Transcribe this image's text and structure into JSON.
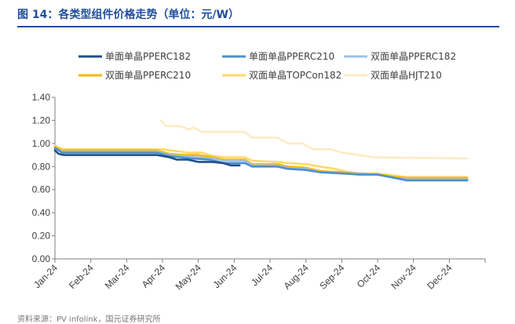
{
  "figure_title": "图 14：各类型组件价格走势（单位：元/W）",
  "source": "资料来源：PV infolink，国元证券研究所",
  "colors": {
    "title": "#1f4e9c",
    "axis": "#7f7f7f",
    "text": "#404040"
  },
  "chart_data": {
    "type": "line",
    "title": "各类型组件价格走势",
    "xlabel": "",
    "ylabel": "元/W",
    "ylim": [
      0,
      1.4
    ],
    "yticks": [
      "0.00",
      "0.20",
      "0.40",
      "0.60",
      "0.80",
      "1.00",
      "1.20",
      "1.40"
    ],
    "categories": [
      "Jan-24",
      "Feb-24",
      "Mar-24",
      "Apr-24",
      "May-24",
      "Jun-24",
      "Jul-24",
      "Aug-24",
      "Sep-24",
      "Oct-24",
      "Nov-24",
      "Dec-24"
    ],
    "grid": false,
    "legend_position": "top",
    "series": [
      {
        "name": "单面单晶PPERC182",
        "color": "#1f4e8c",
        "points": [
          [
            0,
            0.94
          ],
          [
            0.1,
            0.91
          ],
          [
            0.25,
            0.9
          ],
          [
            1,
            0.9
          ],
          [
            2,
            0.9
          ],
          [
            2.85,
            0.9
          ],
          [
            3.2,
            0.88
          ],
          [
            3.4,
            0.86
          ],
          [
            3.7,
            0.86
          ],
          [
            4,
            0.84
          ],
          [
            4.4,
            0.84
          ],
          [
            4.7,
            0.83
          ],
          [
            4.9,
            0.81
          ],
          [
            5.15,
            0.81
          ]
        ]
      },
      {
        "name": "单面单晶PPERC210",
        "color": "#4f8fc9",
        "points": [
          [
            0,
            0.96
          ],
          [
            0.2,
            0.92
          ],
          [
            1,
            0.92
          ],
          [
            2,
            0.92
          ],
          [
            2.85,
            0.92
          ],
          [
            3.2,
            0.89
          ],
          [
            3.5,
            0.88
          ],
          [
            3.8,
            0.87
          ],
          [
            4.3,
            0.86
          ],
          [
            4.7,
            0.83
          ],
          [
            5.3,
            0.83
          ],
          [
            5.5,
            0.8
          ],
          [
            6.2,
            0.8
          ],
          [
            6.5,
            0.78
          ],
          [
            7,
            0.77
          ],
          [
            7.4,
            0.75
          ],
          [
            8,
            0.74
          ],
          [
            8.5,
            0.73
          ],
          [
            9,
            0.73
          ],
          [
            9.5,
            0.7
          ],
          [
            9.8,
            0.68
          ],
          [
            11.5,
            0.68
          ]
        ]
      },
      {
        "name": "双面单晶PPERC182",
        "color": "#9dc3e6",
        "points": [
          [
            0,
            0.96
          ],
          [
            0.2,
            0.93
          ],
          [
            1,
            0.93
          ],
          [
            2,
            0.93
          ],
          [
            2.85,
            0.93
          ],
          [
            3.2,
            0.9
          ],
          [
            3.6,
            0.89
          ],
          [
            4,
            0.88
          ],
          [
            4.4,
            0.87
          ],
          [
            4.7,
            0.85
          ],
          [
            5.3,
            0.85
          ],
          [
            5.5,
            0.81
          ],
          [
            6.2,
            0.81
          ],
          [
            6.5,
            0.79
          ],
          [
            7,
            0.78
          ],
          [
            7.4,
            0.75
          ],
          [
            8,
            0.74
          ],
          [
            8.5,
            0.74
          ],
          [
            9,
            0.73
          ],
          [
            9.5,
            0.7
          ],
          [
            9.8,
            0.69
          ],
          [
            11.5,
            0.69
          ]
        ]
      },
      {
        "name": "双面单晶PPERC210",
        "color": "#f5b800",
        "points": [
          [
            0,
            0.97
          ],
          [
            0.2,
            0.94
          ],
          [
            1,
            0.94
          ],
          [
            2,
            0.94
          ],
          [
            2.85,
            0.94
          ],
          [
            3.2,
            0.91
          ],
          [
            3.6,
            0.9
          ],
          [
            4,
            0.9
          ],
          [
            4.4,
            0.88
          ],
          [
            4.7,
            0.86
          ],
          [
            5.3,
            0.86
          ],
          [
            5.5,
            0.82
          ],
          [
            6.2,
            0.82
          ],
          [
            6.5,
            0.8
          ],
          [
            7,
            0.79
          ],
          [
            7.4,
            0.76
          ],
          [
            8,
            0.75
          ],
          [
            8.5,
            0.74
          ],
          [
            9,
            0.73
          ],
          [
            9.5,
            0.71
          ],
          [
            9.8,
            0.7
          ],
          [
            11.5,
            0.7
          ]
        ]
      },
      {
        "name": "双面单晶TOPCon182",
        "color": "#ffd966",
        "points": [
          [
            0,
            0.98
          ],
          [
            0.2,
            0.95
          ],
          [
            1,
            0.95
          ],
          [
            2,
            0.95
          ],
          [
            2.85,
            0.95
          ],
          [
            3,
            0.95
          ],
          [
            3.2,
            0.94
          ],
          [
            3.5,
            0.93
          ],
          [
            3.7,
            0.92
          ],
          [
            4.1,
            0.92
          ],
          [
            4.3,
            0.9
          ],
          [
            4.7,
            0.88
          ],
          [
            5.3,
            0.88
          ],
          [
            5.5,
            0.85
          ],
          [
            6.2,
            0.84
          ],
          [
            6.5,
            0.83
          ],
          [
            7,
            0.82
          ],
          [
            7.4,
            0.8
          ],
          [
            7.8,
            0.78
          ],
          [
            8.2,
            0.75
          ],
          [
            8.6,
            0.74
          ],
          [
            9,
            0.74
          ],
          [
            9.5,
            0.72
          ],
          [
            9.8,
            0.71
          ],
          [
            11.5,
            0.71
          ]
        ]
      },
      {
        "name": "双面单晶HJT210",
        "color": "#fdebc4",
        "points": [
          [
            2.95,
            1.2
          ],
          [
            3.1,
            1.15
          ],
          [
            3.5,
            1.15
          ],
          [
            3.75,
            1.12
          ],
          [
            3.85,
            1.14
          ],
          [
            4.1,
            1.1
          ],
          [
            5.3,
            1.1
          ],
          [
            5.5,
            1.05
          ],
          [
            6.2,
            1.05
          ],
          [
            6.5,
            1.0
          ],
          [
            6.9,
            1.0
          ],
          [
            7.2,
            0.95
          ],
          [
            7.7,
            0.95
          ],
          [
            8,
            0.92
          ],
          [
            8.5,
            0.9
          ],
          [
            8.9,
            0.88
          ],
          [
            11.5,
            0.87
          ]
        ]
      }
    ]
  }
}
